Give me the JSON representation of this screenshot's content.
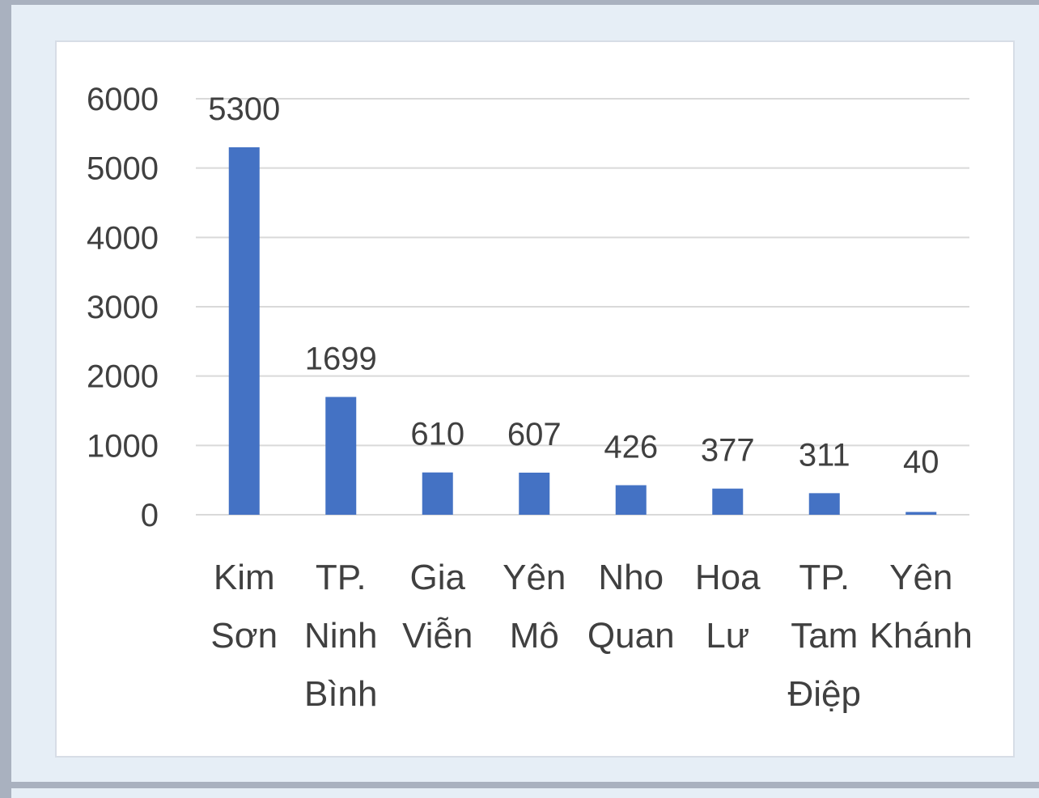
{
  "chart_data": {
    "type": "bar",
    "title": "",
    "xlabel": "",
    "ylabel": "",
    "categories": [
      [
        "Kim",
        "Sơn"
      ],
      [
        "TP.",
        "Ninh",
        "Bình"
      ],
      [
        "Gia",
        "Viễn"
      ],
      [
        "Yên",
        "Mô"
      ],
      [
        "Nho",
        "Quan"
      ],
      [
        "Hoa",
        "Lư"
      ],
      [
        "TP.",
        "Tam",
        "Điệp"
      ],
      [
        "Yên",
        "Khánh"
      ]
    ],
    "values": [
      5300,
      1699,
      610,
      607,
      426,
      377,
      311,
      40
    ],
    "data_labels": [
      "5300",
      "1699",
      "610",
      "607",
      "426",
      "377",
      "311",
      "40"
    ],
    "ylim": [
      0,
      6000
    ],
    "yticks": [
      0,
      1000,
      2000,
      3000,
      4000,
      5000,
      6000
    ],
    "ytick_labels": [
      "0",
      "1000",
      "2000",
      "3000",
      "4000",
      "5000",
      "6000"
    ],
    "grid": true,
    "legend": "none",
    "colors": {
      "bar": "#4472c4",
      "grid": "#d9d9d9",
      "text": "#404040",
      "background": "#ffffff",
      "frame": "#e6eef6",
      "outer": "#a9b1bf"
    }
  }
}
